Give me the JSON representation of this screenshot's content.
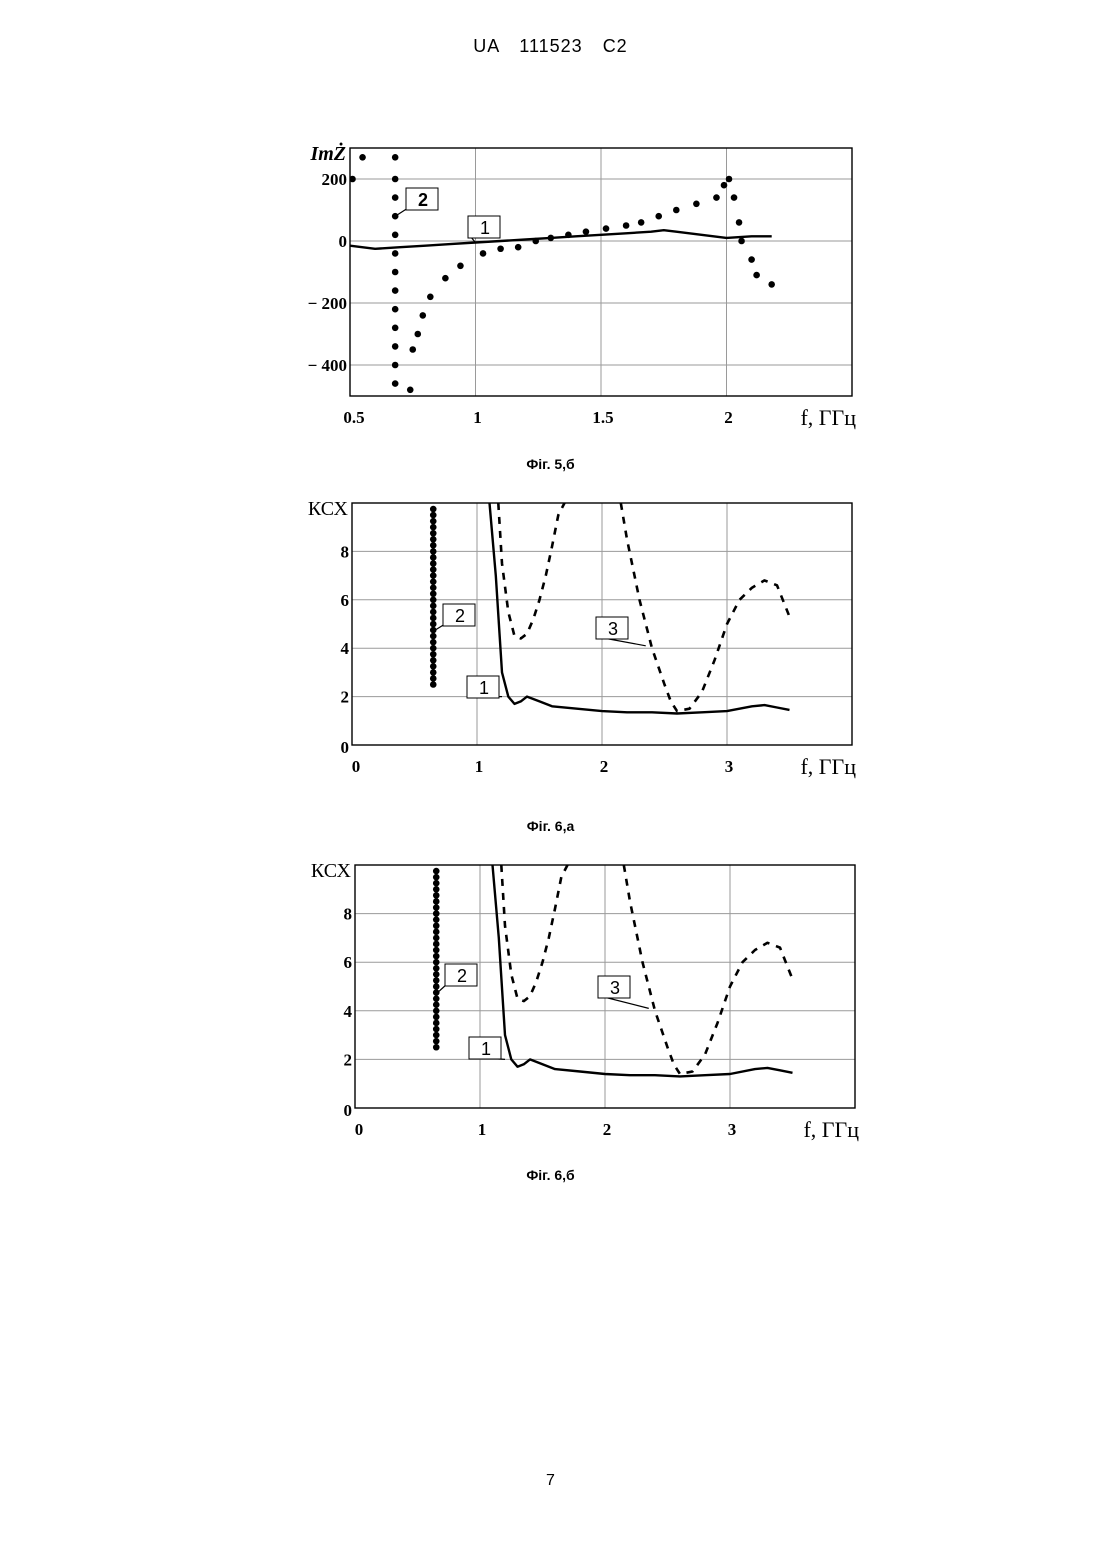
{
  "header": {
    "text": "UA 111523 C2"
  },
  "page_number": "7",
  "chart_data": [
    {
      "type": "line",
      "caption": "Фіг. 5,б",
      "ylabel": "ImŻ",
      "xlabel": "f, ГГц",
      "xlim": [
        0.5,
        2.5
      ],
      "ylim": [
        -500,
        300
      ],
      "x_ticks": [
        0.5,
        1,
        1.5,
        2
      ],
      "x_tick_labels": [
        "0.5",
        "1",
        "1.5",
        "2"
      ],
      "y_ticks": [
        200,
        0,
        -200,
        -400
      ],
      "y_tick_labels": [
        "200",
        "0",
        "− 200",
        "− 400"
      ],
      "grid": true,
      "series": [
        {
          "name": "1",
          "style": "solid",
          "x": [
            0.5,
            0.6,
            0.7,
            0.8,
            0.9,
            1.0,
            1.1,
            1.2,
            1.3,
            1.4,
            1.5,
            1.6,
            1.7,
            1.75,
            1.8,
            1.9,
            2.0,
            2.1,
            2.18
          ],
          "y": [
            -15,
            -25,
            -20,
            -15,
            -10,
            -5,
            0,
            5,
            10,
            15,
            20,
            25,
            30,
            35,
            30,
            20,
            10,
            15,
            15
          ]
        },
        {
          "name": "2",
          "style": "dotted",
          "x": [
            0.51,
            0.55,
            0.68,
            0.68,
            0.68,
            0.68,
            0.68,
            0.68,
            0.68,
            0.68,
            0.68,
            0.68,
            0.68,
            0.68,
            0.68,
            0.74,
            0.75,
            0.77,
            0.79,
            0.82,
            0.88,
            0.94,
            1.03,
            1.1,
            1.17,
            1.24,
            1.3,
            1.37,
            1.44,
            1.52,
            1.6,
            1.66,
            1.73,
            1.8,
            1.88,
            1.96,
            1.99,
            2.01,
            2.03,
            2.05,
            2.06,
            2.1,
            2.12,
            2.18
          ],
          "y": [
            200,
            270,
            270,
            200,
            140,
            80,
            20,
            -40,
            -100,
            -160,
            -220,
            -280,
            -340,
            -400,
            -460,
            -480,
            -350,
            -300,
            -240,
            -180,
            -120,
            -80,
            -40,
            -25,
            -20,
            0,
            10,
            20,
            30,
            40,
            50,
            60,
            80,
            100,
            120,
            140,
            180,
            200,
            140,
            60,
            0,
            -60,
            -110,
            -140
          ]
        }
      ]
    },
    {
      "type": "line",
      "caption": "Фіг. 6,а",
      "ylabel": "КСХ",
      "xlabel": "f, ГГц",
      "xlim": [
        0,
        4
      ],
      "ylim": [
        0,
        10
      ],
      "x_ticks": [
        0,
        1,
        2,
        3
      ],
      "x_tick_labels": [
        "0",
        "1",
        "2",
        "3"
      ],
      "y_ticks": [
        2,
        4,
        6,
        8
      ],
      "y_tick_labels": [
        "2",
        "4",
        "6",
        "8"
      ],
      "grid": true,
      "series": [
        {
          "name": "1",
          "style": "solid",
          "x": [
            1.1,
            1.15,
            1.2,
            1.25,
            1.3,
            1.35,
            1.4,
            1.5,
            1.6,
            1.8,
            2.0,
            2.2,
            2.4,
            2.6,
            2.8,
            3.0,
            3.2,
            3.3,
            3.4,
            3.5
          ],
          "y": [
            10,
            7,
            3,
            2,
            1.7,
            1.8,
            2.0,
            1.8,
            1.6,
            1.5,
            1.4,
            1.35,
            1.35,
            1.3,
            1.35,
            1.4,
            1.6,
            1.65,
            1.55,
            1.45
          ]
        },
        {
          "name": "2",
          "style": "dotted",
          "x": [
            0.65,
            0.65,
            0.65,
            0.65,
            0.65,
            0.65,
            0.65,
            0.65,
            0.65,
            0.65,
            0.65,
            0.65,
            0.65,
            0.65,
            0.65,
            0.65,
            0.65,
            0.65,
            0.65,
            0.65,
            0.65,
            0.65,
            0.65,
            0.65,
            0.65,
            0.65,
            0.65,
            0.65,
            0.65,
            0.65
          ],
          "y": [
            2.5,
            2.75,
            3,
            3.25,
            3.5,
            3.75,
            4,
            4.25,
            4.5,
            4.75,
            5,
            5.25,
            5.5,
            5.75,
            6,
            6.25,
            6.5,
            6.75,
            7,
            7.25,
            7.5,
            7.75,
            8,
            8.25,
            8.5,
            8.75,
            9,
            9.25,
            9.5,
            9.75
          ]
        },
        {
          "name": "3",
          "style": "dashed",
          "x": [
            1.17,
            1.2,
            1.25,
            1.3,
            1.35,
            1.4,
            1.45,
            1.5,
            1.55,
            1.6,
            1.65,
            1.7,
            null,
            2.15,
            2.2,
            2.3,
            2.4,
            2.5,
            2.55,
            2.6,
            2.7,
            2.8,
            2.9,
            3.0,
            3.1,
            3.2,
            3.3,
            3.4,
            3.5
          ],
          "y": [
            10,
            7.5,
            5.5,
            4.5,
            4.4,
            4.6,
            5.2,
            6,
            7,
            8.2,
            9.5,
            10,
            null,
            10,
            8.5,
            6,
            4,
            2.5,
            1.8,
            1.4,
            1.5,
            2.2,
            3.5,
            5,
            6,
            6.5,
            6.8,
            6.6,
            5.3
          ]
        }
      ]
    },
    {
      "type": "line",
      "caption": "Фіг. 6,б",
      "ylabel": "КСХ",
      "xlabel": "f, ГГц",
      "xlim": [
        0,
        4
      ],
      "ylim": [
        0,
        10
      ],
      "x_ticks": [
        0,
        1,
        2,
        3
      ],
      "x_tick_labels": [
        "0",
        "1",
        "2",
        "3"
      ],
      "y_ticks": [
        2,
        4,
        6,
        8
      ],
      "y_tick_labels": [
        "2",
        "4",
        "6",
        "8"
      ],
      "grid": true,
      "series": [
        {
          "name": "1",
          "style": "solid",
          "x": [
            1.1,
            1.15,
            1.2,
            1.25,
            1.3,
            1.35,
            1.4,
            1.5,
            1.6,
            1.8,
            2.0,
            2.2,
            2.4,
            2.6,
            2.8,
            3.0,
            3.2,
            3.3,
            3.4,
            3.5
          ],
          "y": [
            10,
            7,
            3,
            2,
            1.7,
            1.8,
            2.0,
            1.8,
            1.6,
            1.5,
            1.4,
            1.35,
            1.35,
            1.3,
            1.35,
            1.4,
            1.6,
            1.65,
            1.55,
            1.45
          ]
        },
        {
          "name": "2",
          "style": "dotted",
          "x": [
            0.65,
            0.65,
            0.65,
            0.65,
            0.65,
            0.65,
            0.65,
            0.65,
            0.65,
            0.65,
            0.65,
            0.65,
            0.65,
            0.65,
            0.65,
            0.65,
            0.65,
            0.65,
            0.65,
            0.65,
            0.65,
            0.65,
            0.65,
            0.65,
            0.65,
            0.65,
            0.65,
            0.65,
            0.65,
            0.65
          ],
          "y": [
            2.5,
            2.75,
            3,
            3.25,
            3.5,
            3.75,
            4,
            4.25,
            4.5,
            4.75,
            5,
            5.25,
            5.5,
            5.75,
            6,
            6.25,
            6.5,
            6.75,
            7,
            7.25,
            7.5,
            7.75,
            8,
            8.25,
            8.5,
            8.75,
            9,
            9.25,
            9.5,
            9.75
          ]
        },
        {
          "name": "3",
          "style": "dashed",
          "x": [
            1.17,
            1.2,
            1.25,
            1.3,
            1.35,
            1.4,
            1.45,
            1.5,
            1.55,
            1.6,
            1.65,
            1.7,
            null,
            2.15,
            2.2,
            2.3,
            2.4,
            2.5,
            2.55,
            2.6,
            2.7,
            2.8,
            2.9,
            3.0,
            3.1,
            3.2,
            3.3,
            3.4,
            3.5
          ],
          "y": [
            10,
            7.5,
            5.5,
            4.5,
            4.4,
            4.6,
            5.2,
            6,
            7,
            8.2,
            9.5,
            10,
            null,
            10,
            8.5,
            6,
            4,
            2.5,
            1.8,
            1.4,
            1.5,
            2.2,
            3.5,
            5,
            6,
            6.5,
            6.8,
            6.6,
            5.3
          ]
        }
      ]
    }
  ]
}
